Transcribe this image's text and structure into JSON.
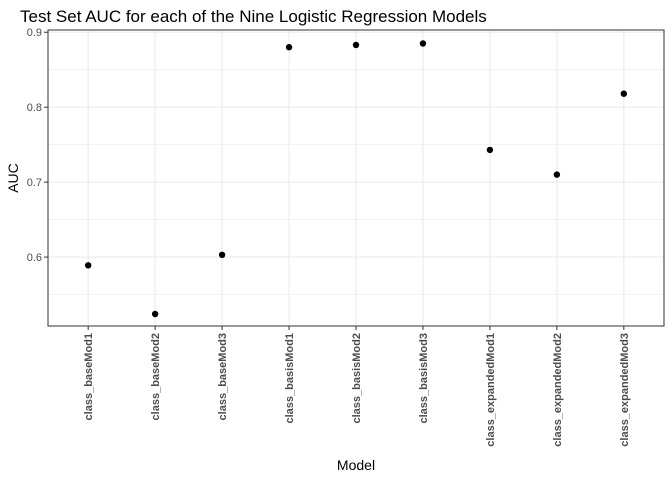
{
  "chart_data": {
    "type": "scatter",
    "title": "Test Set AUC for each of the Nine Logistic Regression Models",
    "xlabel": "Model",
    "ylabel": "AUC",
    "categories": [
      "class_baseMod1",
      "class_baseMod2",
      "class_baseMod3",
      "class_basisMod1",
      "class_basisMod2",
      "class_basisMod3",
      "class_expandedMod1",
      "class_expandedMod2",
      "class_expandedMod3"
    ],
    "values": [
      0.589,
      0.524,
      0.603,
      0.88,
      0.883,
      0.885,
      0.743,
      0.71,
      0.818
    ],
    "ylim": [
      0.508,
      0.903
    ],
    "yticks": [
      0.6,
      0.7,
      0.8,
      0.9
    ],
    "ytick_labels": [
      "0.6",
      "0.7",
      "0.8",
      "0.9"
    ],
    "grid": true,
    "point_color": "#000000",
    "grid_color": "#ebebeb",
    "panel_border_color": "#333333"
  }
}
